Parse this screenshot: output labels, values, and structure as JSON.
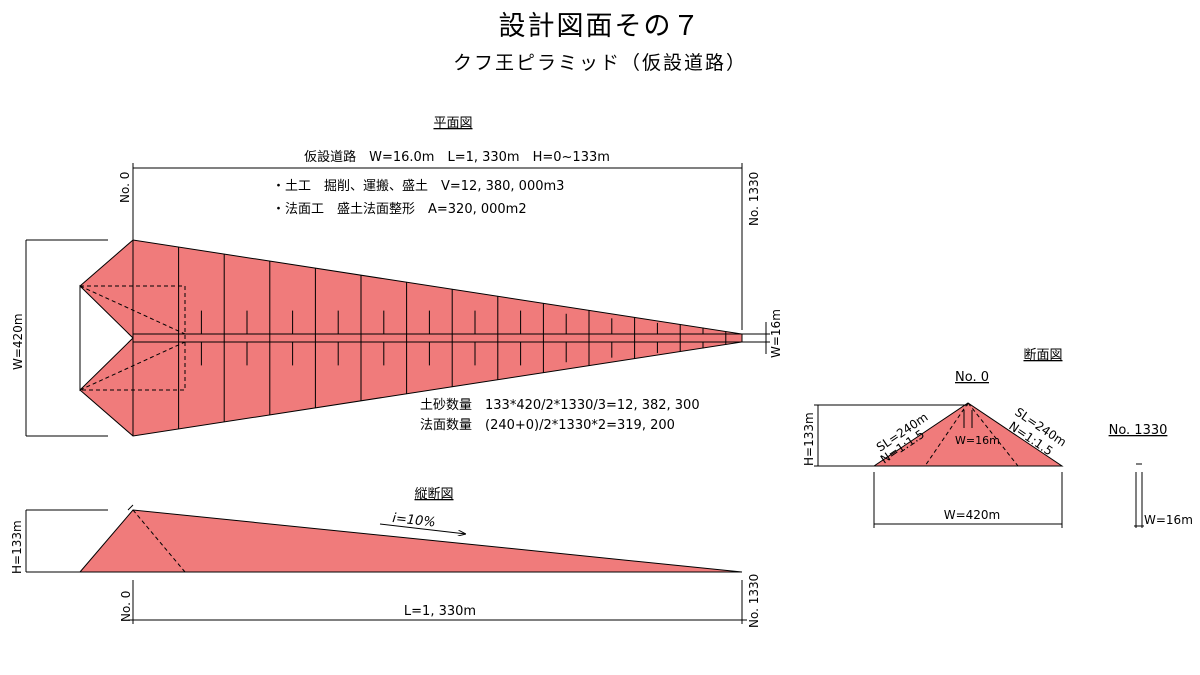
{
  "header": {
    "title": "設計図面その７",
    "subtitle": "クフ王ピラミッド（仮設道路）"
  },
  "plan": {
    "heading": "平面図",
    "road_spec": "仮設道路　W=16.0m　L=1, 330m　H=0~133m",
    "work_items": [
      "・土工　掘削、運搬、盛土　V=12, 380, 000m3",
      "・法面工　盛土法面整形　A=320, 000m2"
    ],
    "start_station": "No. 0",
    "end_station": "No. 1330",
    "width_left": "W=420m",
    "width_right": "W=16m",
    "quantities": [
      "土砂数量　133*420/2*1330/3=12, 382, 300",
      "法面数量　(240+0)/2*1330*2=319, 200"
    ]
  },
  "profile": {
    "heading": "縦断図",
    "grade": "i=10%",
    "height": "H=133m",
    "start_station": "No. 0",
    "end_station": "No. 1330",
    "length": "L=1, 330m"
  },
  "section": {
    "heading": "断面図",
    "no0_label": "No. 0",
    "no1330_label": "No. 1330",
    "slope_left_length": "SL=240m",
    "slope_left_ratio": "N=1:1.5",
    "slope_right_length": "SL=240m",
    "slope_right_ratio": "N=1:1.5",
    "crest_width": "W=16m",
    "height": "H=133m",
    "base_width": "W=420m",
    "end_width": "W=16m"
  },
  "colors": {
    "fill": "#f07b7b",
    "line": "#000000"
  }
}
